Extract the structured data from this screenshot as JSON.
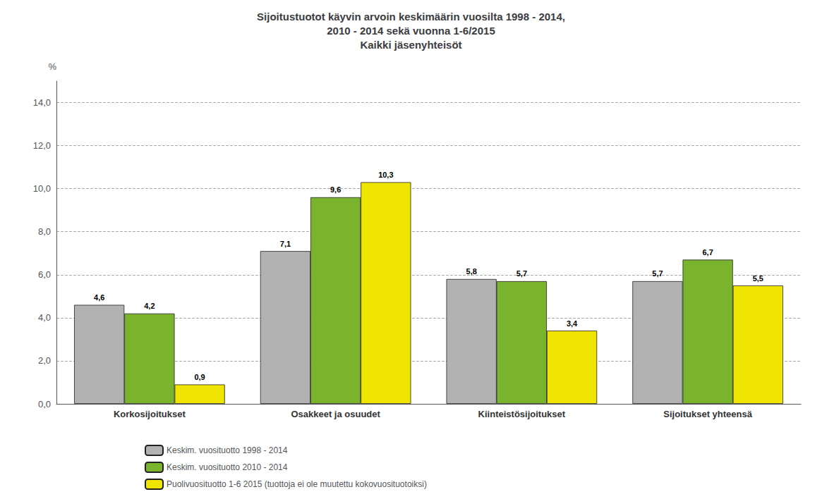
{
  "chart_data": {
    "type": "bar",
    "title": "Sijoitustuotot käyvin arvoin keskimäärin vuosilta 1998 - 2014,\n2010 - 2014 sekä vuonna 1-6/2015\nKaikki jäsenyhteisöt",
    "y_label": "%",
    "categories": [
      "Korkosijoitukset",
      "Osakkeet ja osuudet",
      "Kiinteistösijoitukset",
      "Sijoitukset yhteensä"
    ],
    "series": [
      {
        "name": "Keskim. vuosituotto 1998 - 2014",
        "color": "#b2b2b2",
        "values": [
          4.6,
          7.1,
          5.8,
          5.7
        ],
        "value_labels": [
          "4,6",
          "7,1",
          "5,8",
          "5,7"
        ]
      },
      {
        "name": "Keskim. vuosituotto 2010 - 2014",
        "color": "#7ab32e",
        "values": [
          4.2,
          9.6,
          5.7,
          6.7
        ],
        "value_labels": [
          "4,2",
          "9,6",
          "5,7",
          "6,7"
        ]
      },
      {
        "name": "Puolivuosituotto 1-6 2015 (tuottoja ei ole muutettu kokovuosituotoiksi)",
        "color": "#f0e500",
        "values": [
          0.9,
          10.3,
          3.4,
          5.5
        ],
        "value_labels": [
          "0,9",
          "10,3",
          "3,4",
          "5,5"
        ]
      }
    ],
    "ylim": [
      0,
      15.0
    ],
    "yticks": [
      {
        "value": 0.0,
        "label": "0,0"
      },
      {
        "value": 2.0,
        "label": "2,0"
      },
      {
        "value": 4.0,
        "label": "4,0"
      },
      {
        "value": 6.0,
        "label": "6,0"
      },
      {
        "value": 8.0,
        "label": "8,0"
      },
      {
        "value": 10.0,
        "label": "10,0"
      },
      {
        "value": 12.0,
        "label": "12,0"
      },
      {
        "value": 14.0,
        "label": "14,0"
      }
    ],
    "grid": true,
    "data_labels": true,
    "legend": "bottom"
  }
}
